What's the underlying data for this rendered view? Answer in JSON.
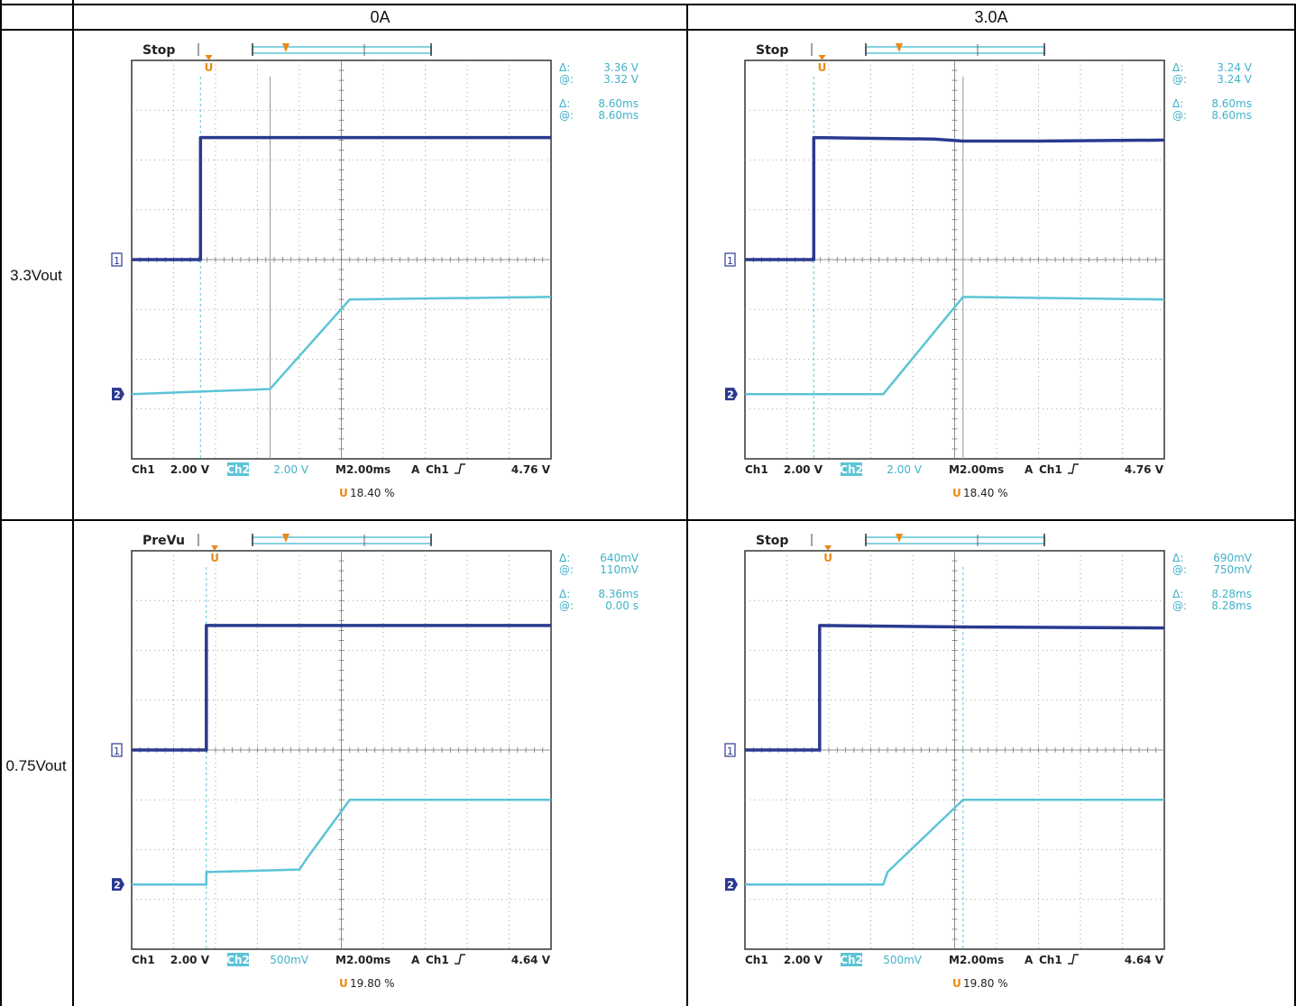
{
  "table": {
    "columns": [
      "0A",
      "3.0A"
    ],
    "rows": [
      "3.3Vout",
      "0.75Vout"
    ]
  },
  "colors": {
    "ch1": "#2b3a8f",
    "ch2": "#5cc4d6",
    "ch2_text": "#3fb2c8",
    "trigger": "#e98a18",
    "grid": "#8a8a8a",
    "bg": "#ffffff"
  },
  "chart_data": [
    {
      "type": "line",
      "panel": "3.3Vout / 0A",
      "status": "Stop",
      "readout": {
        "dv": "3.36 V",
        "v_at": "3.32 V",
        "dt": "8.60ms",
        "t_at": "8.60ms"
      },
      "settings": {
        "ch1_label": "Ch1",
        "ch1_scale": "2.00 V",
        "ch2_label": "Ch2",
        "ch2_scale": "2.00 V",
        "timebase": "M2.00ms",
        "trig_mode": "A",
        "trig_src": "Ch1",
        "trig_level": "4.76 V",
        "trig_pos": "18.40 %"
      },
      "cursors_x": [
        1.64,
        3.3
      ],
      "xlim": [
        0,
        10
      ],
      "ylim": [
        0,
        8
      ],
      "grid": true,
      "series": [
        {
          "channel": "1",
          "ref": 4.0,
          "x": [
            0,
            1.64,
            1.64,
            10
          ],
          "y": [
            4.0,
            4.0,
            6.45,
            6.45
          ]
        },
        {
          "channel": "2",
          "ref": 1.3,
          "x": [
            0,
            1.64,
            3.3,
            5.2,
            10
          ],
          "y": [
            1.3,
            1.35,
            1.4,
            3.2,
            3.25
          ]
        }
      ]
    },
    {
      "type": "line",
      "panel": "3.3Vout / 3.0A",
      "status": "Stop",
      "readout": {
        "dv": "3.24 V",
        "v_at": "3.24 V",
        "dt": "8.60ms",
        "t_at": "8.60ms"
      },
      "settings": {
        "ch1_label": "Ch1",
        "ch1_scale": "2.00 V",
        "ch2_label": "Ch2",
        "ch2_scale": "2.00 V",
        "timebase": "M2.00ms",
        "trig_mode": "A",
        "trig_src": "Ch1",
        "trig_level": "4.76 V",
        "trig_pos": "18.40 %"
      },
      "cursors_x": [
        1.64,
        5.2
      ],
      "xlim": [
        0,
        10
      ],
      "ylim": [
        0,
        8
      ],
      "grid": true,
      "series": [
        {
          "channel": "1",
          "ref": 4.0,
          "x": [
            0,
            1.64,
            1.64,
            4.5,
            5.2,
            7.0,
            10
          ],
          "y": [
            4.0,
            4.0,
            6.45,
            6.42,
            6.38,
            6.38,
            6.4
          ]
        },
        {
          "channel": "2",
          "ref": 1.3,
          "x": [
            0,
            1.64,
            3.3,
            5.2,
            10
          ],
          "y": [
            1.3,
            1.3,
            1.3,
            3.25,
            3.2
          ]
        }
      ]
    },
    {
      "type": "line",
      "panel": "0.75Vout / 0A",
      "status": "PreVu",
      "readout": {
        "dv": "640mV",
        "v_at": "110mV",
        "dt": "8.36ms",
        "t_at": "0.00 s"
      },
      "settings": {
        "ch1_label": "Ch1",
        "ch1_scale": "2.00 V",
        "ch2_label": "Ch2",
        "ch2_scale": "500mV",
        "timebase": "M2.00ms",
        "trig_mode": "A",
        "trig_src": "Ch1",
        "trig_level": "4.64 V",
        "trig_pos": "19.80 %"
      },
      "cursors_x": [
        1.78
      ],
      "xlim": [
        0,
        10
      ],
      "ylim": [
        0,
        8
      ],
      "grid": true,
      "series": [
        {
          "channel": "1",
          "ref": 4.0,
          "x": [
            0,
            1.78,
            1.78,
            10
          ],
          "y": [
            4.0,
            4.0,
            6.5,
            6.5
          ]
        },
        {
          "channel": "2",
          "ref": 1.3,
          "x": [
            0,
            1.78,
            1.78,
            4.0,
            4.2,
            5.2,
            10
          ],
          "y": [
            1.3,
            1.3,
            1.55,
            1.6,
            1.85,
            3.0,
            3.0
          ]
        }
      ]
    },
    {
      "type": "line",
      "panel": "0.75Vout / 3.0A",
      "status": "Stop",
      "readout": {
        "dv": "690mV",
        "v_at": "750mV",
        "dt": "8.28ms",
        "t_at": "8.28ms"
      },
      "settings": {
        "ch1_label": "Ch1",
        "ch1_scale": "2.00 V",
        "ch2_label": "Ch2",
        "ch2_scale": "500mV",
        "timebase": "M2.00ms",
        "trig_mode": "A",
        "trig_src": "Ch1",
        "trig_level": "4.64 V",
        "trig_pos": "19.80 %"
      },
      "cursors_x": [
        5.2
      ],
      "xlim": [
        0,
        10
      ],
      "ylim": [
        0,
        8
      ],
      "grid": true,
      "series": [
        {
          "channel": "1",
          "ref": 4.0,
          "x": [
            0,
            1.78,
            1.78,
            5.2,
            10
          ],
          "y": [
            4.0,
            4.0,
            6.5,
            6.47,
            6.45
          ]
        },
        {
          "channel": "2",
          "ref": 1.3,
          "x": [
            0,
            3.3,
            3.4,
            5.2,
            10
          ],
          "y": [
            1.3,
            1.3,
            1.55,
            3.0,
            3.0
          ]
        }
      ]
    }
  ]
}
